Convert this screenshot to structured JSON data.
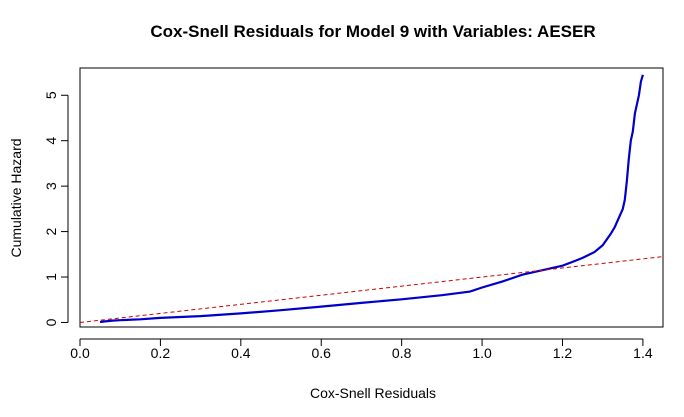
{
  "chart_data": {
    "type": "line",
    "title": "Cox-Snell Residuals for Model 9 with Variables: AESER",
    "xlabel": "Cox-Snell Residuals",
    "ylabel": "Cumulative Hazard",
    "xlim": [
      0.0,
      1.45
    ],
    "ylim": [
      -0.1,
      5.6
    ],
    "x_ticks": [
      0.0,
      0.2,
      0.4,
      0.6,
      0.8,
      1.0,
      1.2,
      1.4
    ],
    "x_tick_labels": [
      "0.0",
      "0.2",
      "0.4",
      "0.6",
      "0.8",
      "1.0",
      "1.2",
      "1.4"
    ],
    "y_ticks": [
      0,
      1,
      2,
      3,
      4,
      5
    ],
    "y_tick_labels": [
      "0",
      "1",
      "2",
      "3",
      "4",
      "5"
    ],
    "grid": false,
    "series": [
      {
        "color": "#0000cc",
        "style": "solid",
        "x": [
          0.05,
          0.06,
          0.08,
          0.1,
          0.15,
          0.2,
          0.3,
          0.4,
          0.5,
          0.6,
          0.7,
          0.8,
          0.9,
          0.97,
          1.0,
          1.05,
          1.1,
          1.15,
          1.2,
          1.23,
          1.25,
          1.28,
          1.3,
          1.32,
          1.33,
          1.34,
          1.35,
          1.355,
          1.36,
          1.365,
          1.37,
          1.375,
          1.38,
          1.385,
          1.39,
          1.395,
          1.4
        ],
        "y": [
          0.01,
          0.02,
          0.04,
          0.05,
          0.07,
          0.1,
          0.14,
          0.2,
          0.27,
          0.35,
          0.43,
          0.51,
          0.6,
          0.68,
          0.77,
          0.9,
          1.05,
          1.15,
          1.25,
          1.35,
          1.42,
          1.55,
          1.7,
          1.95,
          2.1,
          2.3,
          2.5,
          2.7,
          3.1,
          3.6,
          4.0,
          4.2,
          4.6,
          4.8,
          5.0,
          5.3,
          5.45
        ]
      },
      {
        "color": "#cc0000",
        "style": "dashed",
        "x": [
          0.0,
          1.45
        ],
        "y": [
          0.0,
          1.45
        ]
      }
    ]
  }
}
